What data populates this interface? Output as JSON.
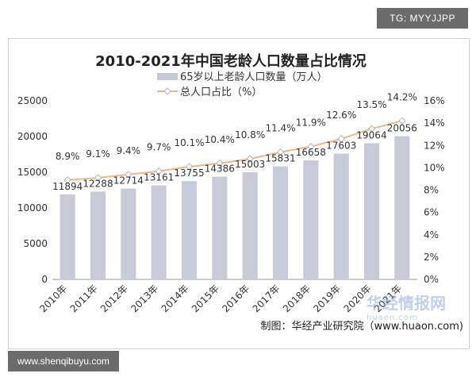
{
  "header": {
    "tag": "TG: MYYJJPP"
  },
  "footer": {
    "credit": "制图：华经产业研究院（www.huaon.com)",
    "site": "www.shenqibuyu.com",
    "watermark_main": "华经情报网",
    "watermark_sub": "huaon.com"
  },
  "colors": {
    "bar": "#c9cad8",
    "line": "#e7b98c",
    "marker_fill": "#ffffff",
    "marker_stroke": "#b5b5b5"
  },
  "chart_data": {
    "type": "bar",
    "title": "2010-2021年中国老龄人口数量占比情况",
    "categories": [
      "2010年",
      "2011年",
      "2012年",
      "2013年",
      "2014年",
      "2015年",
      "2016年",
      "2017年",
      "2018年",
      "2019年",
      "2020年",
      "2021年"
    ],
    "series": [
      {
        "name": "65岁以上老龄人口数量（万人）",
        "type": "bar",
        "axis": "left",
        "values": [
          11894,
          12288,
          12714,
          13161,
          13755,
          14386,
          15003,
          15831,
          16658,
          17603,
          19064,
          20056
        ],
        "labels": [
          "11894",
          "12288",
          "12714",
          "13161",
          "13755",
          "14386",
          "15003",
          "15831",
          "16658",
          "17603",
          "19064",
          "20056"
        ]
      },
      {
        "name": "总人口占比（%）",
        "type": "line",
        "axis": "right",
        "values": [
          8.9,
          9.1,
          9.4,
          9.7,
          10.1,
          10.4,
          10.8,
          11.4,
          11.9,
          12.6,
          13.5,
          14.2
        ],
        "labels": [
          "8.9%",
          "9.1%",
          "9.4%",
          "9.7%",
          "10.1%",
          "10.4%",
          "10.8%",
          "11.4%",
          "11.9%",
          "12.6%",
          "13.5%",
          "14.2%"
        ]
      }
    ],
    "ylim_left": [
      0,
      25000
    ],
    "yticks_left": [
      "0",
      "5000",
      "10000",
      "15000",
      "20000",
      "25000"
    ],
    "ylim_right": [
      0,
      16
    ],
    "yticks_right": [
      "0%",
      "2%",
      "4%",
      "6%",
      "8%",
      "10%",
      "12%",
      "14%",
      "16%"
    ],
    "grid": false,
    "legend_position": "top-center"
  }
}
